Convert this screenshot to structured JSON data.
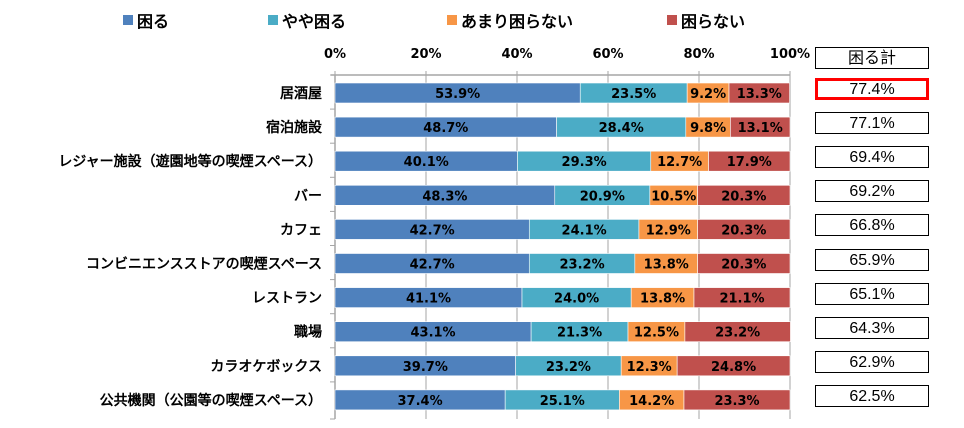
{
  "legend": [
    {
      "label": "困る",
      "color": "#4F81BD"
    },
    {
      "label": "やや困る",
      "color": "#4BACC6"
    },
    {
      "label": "あまり困らない",
      "color": "#F79646"
    },
    {
      "label": "困らない",
      "color": "#C0504D"
    }
  ],
  "totals": {
    "header": "困る計",
    "values": [
      "77.4%",
      "77.1%",
      "69.4%",
      "69.2%",
      "66.8%",
      "65.9%",
      "65.1%",
      "64.3%",
      "62.9%",
      "62.5%"
    ],
    "highlight_color": "#FF0000"
  },
  "chart_data": {
    "type": "bar",
    "orientation": "horizontal",
    "stacked": "percent",
    "title": "",
    "xlabel": "",
    "ylabel": "",
    "xlim": [
      0,
      100
    ],
    "x_ticks": [
      "0%",
      "20%",
      "40%",
      "60%",
      "80%",
      "100%"
    ],
    "grid": true,
    "legend_position": "top",
    "categories": [
      "居酒屋",
      "宿泊施設",
      "レジャー施設（遊園地等の喫煙スペース）",
      "バー",
      "カフェ",
      "コンビニエンスストアの喫煙スペース",
      "レストラン",
      "職場",
      "カラオケボックス",
      "公共機関（公園等の喫煙スペース）"
    ],
    "series": [
      {
        "name": "困る",
        "color": "#4F81BD",
        "values": [
          53.9,
          48.7,
          40.1,
          48.3,
          42.7,
          42.7,
          41.1,
          43.1,
          39.7,
          37.4
        ]
      },
      {
        "name": "やや困る",
        "color": "#4BACC6",
        "values": [
          23.5,
          28.4,
          29.3,
          20.9,
          24.1,
          23.2,
          24.0,
          21.3,
          23.2,
          25.1
        ]
      },
      {
        "name": "あまり困らない",
        "color": "#F79646",
        "values": [
          9.2,
          9.8,
          12.7,
          10.5,
          12.9,
          13.8,
          13.8,
          12.5,
          12.3,
          14.2
        ]
      },
      {
        "name": "困らない",
        "color": "#C0504D",
        "values": [
          13.3,
          13.1,
          17.9,
          20.3,
          20.3,
          20.3,
          21.1,
          23.2,
          24.8,
          23.3
        ]
      }
    ]
  }
}
